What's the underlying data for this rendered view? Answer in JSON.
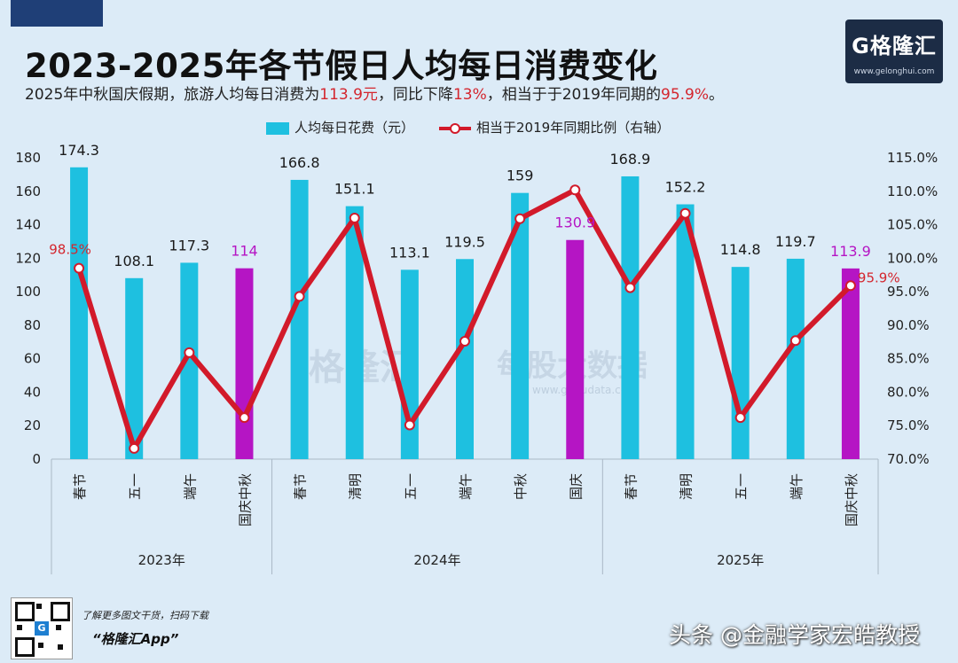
{
  "header": {
    "title": "2023-2025年各节假日人均每日消费变化",
    "subtitle_parts": [
      "2025年中秋国庆假期，旅游人均每日消费为",
      "113.9元",
      "，同比下降",
      "13%",
      "，相当于于2019年同期的",
      "95.9%",
      "。"
    ]
  },
  "logo": {
    "name": "G格隆汇",
    "url": "www.gelonghui.com"
  },
  "colors": {
    "bar": "#1ec0e0",
    "bar_highlight": "#b515c4",
    "line": "#d21a2a",
    "highlight_label": "#b515c4",
    "red_label": "#d4262e"
  },
  "chart_data": {
    "type": "bar",
    "legend_position": "top",
    "legend": [
      "人均每日花费（元）",
      "相当于2019年同期比例（右轴）"
    ],
    "groups": [
      {
        "name": "2023年",
        "categories": [
          "春节",
          "五一",
          "端午",
          "国庆中秋"
        ]
      },
      {
        "name": "2024年",
        "categories": [
          "春节",
          "清明",
          "五一",
          "端午",
          "中秋",
          "国庆"
        ]
      },
      {
        "name": "2025年",
        "categories": [
          "春节",
          "清明",
          "五一",
          "端午",
          "国庆中秋"
        ]
      }
    ],
    "categories": [
      "春节",
      "五一",
      "端午",
      "国庆中秋",
      "春节",
      "清明",
      "五一",
      "端午",
      "中秋",
      "国庆",
      "春节",
      "清明",
      "五一",
      "端午",
      "国庆中秋"
    ],
    "series": [
      {
        "name": "人均每日花费（元）",
        "type": "bar",
        "axis": "left",
        "values": [
          174.3,
          108.1,
          117.3,
          114,
          166.8,
          151.1,
          113.1,
          119.5,
          159,
          130.9,
          168.9,
          152.2,
          114.8,
          119.7,
          113.9
        ],
        "labels": [
          "174.3",
          "108.1",
          "117.3",
          "114",
          "166.8",
          "151.1",
          "113.1",
          "119.5",
          "159",
          "130.9",
          "168.9",
          "152.2",
          "114.8",
          "119.7",
          "113.9"
        ],
        "highlighted": [
          3,
          9,
          14
        ]
      },
      {
        "name": "相当于2019年同期比例（右轴）",
        "type": "line",
        "axis": "right",
        "values": [
          98.5,
          71.6,
          85.9,
          76.2,
          94.3,
          106.0,
          75.1,
          87.6,
          105.9,
          110.2,
          95.6,
          106.7,
          76.2,
          87.7,
          95.9
        ],
        "labels": [
          {
            "index": 0,
            "text": "98.5%"
          },
          {
            "index": 14,
            "text": "95.9%"
          }
        ]
      }
    ],
    "y_left": {
      "min": 0,
      "max": 180,
      "ticks": [
        "0",
        "20",
        "40",
        "60",
        "80",
        "100",
        "120",
        "140",
        "160",
        "180"
      ]
    },
    "y_right": {
      "min": 70,
      "max": 115,
      "ticks": [
        "70.0%",
        "75.0%",
        "80.0%",
        "85.0%",
        "90.0%",
        "95.0%",
        "100.0%",
        "105.0%",
        "110.0%",
        "115.0%"
      ]
    },
    "watermark": {
      "brand": "格隆汇",
      "product": "每股大数据",
      "url": "www.gogudata.com"
    }
  },
  "footer": {
    "qr_label": "G",
    "line1": "了解更多图文干货，扫码下载",
    "line2": "“格隆汇App”",
    "watermark": "头条 @金融学家宏皓教授"
  }
}
